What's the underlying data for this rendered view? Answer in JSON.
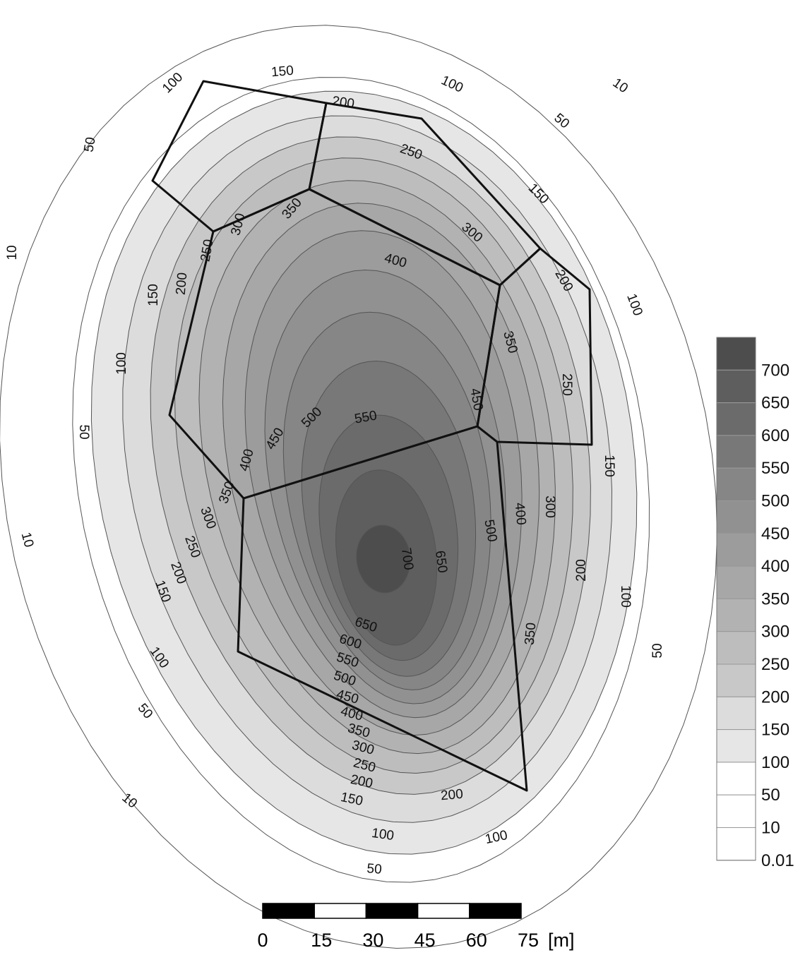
{
  "contour_levels": [
    0.01,
    10,
    50,
    100,
    150,
    200,
    250,
    300,
    350,
    400,
    450,
    500,
    550,
    600,
    650,
    700
  ],
  "legend": {
    "labels": [
      "700",
      "650",
      "600",
      "550",
      "500",
      "450",
      "400",
      "350",
      "300",
      "250",
      "200",
      "150",
      "100",
      "50",
      "10",
      "0.01"
    ],
    "colors": [
      "#4d4d4d",
      "#5e5e5e",
      "#6b6b6b",
      "#787878",
      "#868686",
      "#919191",
      "#9c9c9c",
      "#a7a7a7",
      "#b2b2b2",
      "#bdbdbd",
      "#c8c8c8",
      "#dcdcdc",
      "#e6e6e6",
      "#ffffff",
      "#ffffff",
      "#ffffff"
    ]
  },
  "contour_labels": {
    "v10": "10",
    "v50": "50",
    "v100": "100",
    "v150": "150",
    "v200": "200",
    "v250": "250",
    "v300": "300",
    "v350": "350",
    "v400": "400",
    "v450": "450",
    "v500": "500",
    "v550": "550",
    "v600": "600",
    "v650": "650",
    "v700": "700"
  },
  "scale_bar": {
    "ticks": [
      "0",
      "15",
      "30",
      "45",
      "60",
      "75"
    ],
    "unit": "[m]"
  }
}
